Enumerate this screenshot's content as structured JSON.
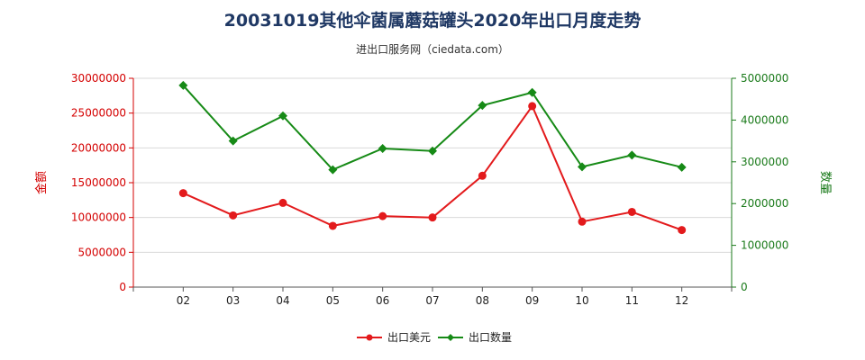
{
  "title": "20031019其他伞菌属蘑菇罐头2020年出口月度走势",
  "subtitle": "进出口服务网（ciedata.com）",
  "colors": {
    "value": "#e31a1c",
    "quantity": "#168a16",
    "left_axis": "#d40000",
    "right_axis": "#1a7a1a"
  },
  "chart_data": {
    "type": "line",
    "title": "20031019其他伞菌属蘑菇罐头2020年出口月度走势",
    "categories": [
      "02",
      "03",
      "04",
      "05",
      "06",
      "07",
      "08",
      "09",
      "10",
      "11",
      "12"
    ],
    "y_left": {
      "label": "金额",
      "range": [
        0,
        30000000
      ],
      "ticks": [
        "0",
        "5000000",
        "10000000",
        "15000000",
        "20000000",
        "25000000",
        "30000000"
      ]
    },
    "y_right": {
      "label": "数量",
      "range": [
        0,
        5000000
      ],
      "ticks": [
        "0",
        "1000000",
        "2000000",
        "3000000",
        "4000000",
        "5000000"
      ]
    },
    "grid": true,
    "legend_position": "bottom-center",
    "series": [
      {
        "name": "出口美元",
        "axis": "left",
        "color": "#e31a1c",
        "values": [
          13500000,
          10300000,
          12100000,
          8800000,
          10200000,
          10000000,
          16000000,
          26000000,
          9400000,
          10800000,
          8200000
        ]
      },
      {
        "name": "出口数量",
        "axis": "right",
        "color": "#168a16",
        "values": [
          4830000,
          3500000,
          4100000,
          2810000,
          3320000,
          3260000,
          4350000,
          4660000,
          2880000,
          3160000,
          2870000
        ]
      }
    ]
  }
}
